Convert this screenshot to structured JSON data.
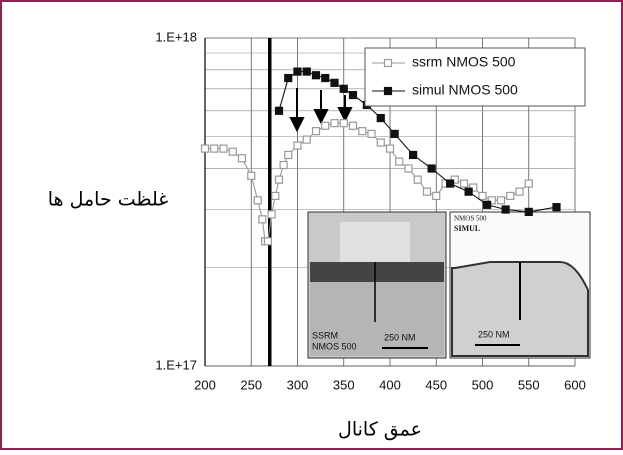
{
  "chart_data": {
    "type": "line",
    "x_label": "عمق کانال",
    "y_label": "غلظت حامل ها",
    "log_y": true,
    "grid": true,
    "legend": "top-right",
    "xlim": [
      200,
      600
    ],
    "xticks": [
      200,
      250,
      300,
      350,
      400,
      450,
      500,
      550,
      600
    ],
    "ylim": [
      1e+17,
      1e+18
    ],
    "yticks": [
      {
        "value": 1e+17,
        "label": "1.E+17"
      },
      {
        "value": 1e+18,
        "label": "1.E+18"
      }
    ],
    "yminorticks": [
      2e+17,
      3e+17,
      4e+17,
      5e+17,
      6e+17,
      7e+17,
      8e+17,
      9e+17
    ],
    "vline": 270,
    "series": [
      {
        "name": "ssrm NMOS 500",
        "color": "#999999",
        "marker": "open-square",
        "x": [
          200,
          210,
          220,
          230,
          240,
          250,
          257,
          262,
          265,
          268,
          272,
          276,
          280,
          285,
          290,
          300,
          310,
          320,
          330,
          340,
          350,
          360,
          370,
          380,
          390,
          400,
          410,
          420,
          430,
          440,
          450,
          460,
          470,
          480,
          490,
          500,
          510,
          520,
          530,
          540,
          550
        ],
        "values": [
          4.6e+17,
          4.6e+17,
          4.6e+17,
          4.5e+17,
          4.3e+17,
          3.8e+17,
          3.2e+17,
          2.8e+17,
          2.4e+17,
          2.4e+17,
          2.9e+17,
          3.3e+17,
          3.7e+17,
          4.1e+17,
          4.4e+17,
          4.7e+17,
          4.9e+17,
          5.2e+17,
          5.4e+17,
          5.5e+17,
          5.5e+17,
          5.4e+17,
          5.2e+17,
          5.1e+17,
          4.8e+17,
          4.6e+17,
          4.2e+17,
          4e+17,
          3.7e+17,
          3.4e+17,
          3.3e+17,
          3.6e+17,
          3.7e+17,
          3.6e+17,
          3.5e+17,
          3.3e+17,
          3.2e+17,
          3.2e+17,
          3.3e+17,
          3.4e+17,
          3.6e+17
        ]
      },
      {
        "name": "simul NMOS 500",
        "color": "#111111",
        "marker": "filled-square",
        "x": [
          280,
          290,
          300,
          310,
          320,
          330,
          340,
          350,
          360,
          375,
          390,
          405,
          425,
          445,
          465,
          485,
          505,
          525,
          550,
          580
        ],
        "values": [
          6e+17,
          7.55e+17,
          7.9e+17,
          7.9e+17,
          7.7e+17,
          7.55e+17,
          7.3e+17,
          7e+17,
          6.7e+17,
          6.25e+17,
          5.7e+17,
          5.1e+17,
          4.4e+17,
          4e+17,
          3.6e+17,
          3.4e+17,
          3.1e+17,
          3e+17,
          2.95e+17,
          3.05e+17
        ]
      }
    ],
    "insets": [
      {
        "labels": [
          "SSRM",
          "NMOS 500",
          "250 NM"
        ]
      },
      {
        "labels": [
          "NMOS 500",
          "SIMUL",
          "250 NM"
        ]
      }
    ]
  }
}
